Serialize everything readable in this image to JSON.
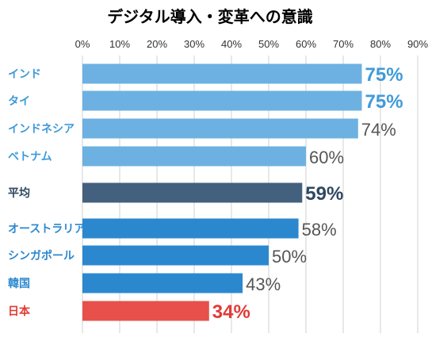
{
  "chart_data": {
    "type": "bar",
    "orientation": "horizontal",
    "title": "デジタル導入・変革への意識",
    "x_ticks": [
      "0%",
      "10%",
      "20%",
      "30%",
      "40%",
      "50%",
      "60%",
      "70%",
      "80%",
      "90%"
    ],
    "xlim": [
      0,
      90
    ],
    "grid": true,
    "categories": [
      "インド",
      "タイ",
      "インドネシア",
      "ベトナム",
      "平均",
      "オーストラリア",
      "シンガポール",
      "韓国",
      "日本"
    ],
    "values": [
      75,
      75,
      74,
      60,
      59,
      58,
      50,
      43,
      34
    ],
    "value_labels": [
      "75%",
      "75%",
      "74%",
      "60%",
      "59%",
      "58%",
      "50%",
      "43%",
      "34%"
    ],
    "colors": {
      "title": "#2a8fd4",
      "bar_light": "#6cb1e1",
      "bar_mid": "#2b88cf",
      "bar_average": "#44607f",
      "bar_japan": "#e8504b",
      "label_light": "#3f9ad8",
      "label_mid": "#2b88cf",
      "label_average": "#2f4860",
      "label_japan": "#e23a35",
      "value_plain": "#555555",
      "grid": "#d0d0d0"
    }
  }
}
